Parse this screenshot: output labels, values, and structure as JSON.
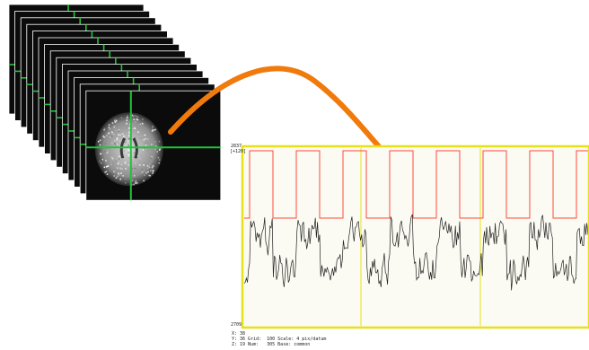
{
  "colors": {
    "scan_background": "#0b0b0b",
    "crosshair": "#21c33a",
    "arrow": "#f07a0c",
    "plot_frame": "#e6e11a",
    "task_waveform": "#ff4a3a",
    "signal_trace": "#222222",
    "plot_background": "#fbfbf3"
  },
  "icons": {
    "arrow": "curved-arrow-icon",
    "slices": "brain-slice-stack"
  },
  "plot": {
    "y_max": "2837",
    "y_max_sub": "[+120]",
    "y_min": "2709",
    "footer_line1": "X: 38",
    "footer_line2": "Y: 36 Grid:  100 Scale: 4 pix/datum",
    "footer_line3": "Z: 19 Num:   305 Base: common"
  },
  "signal": {
    "seed": 7,
    "task_period_datapoints": 40,
    "task_on_datapoints": 20
  }
}
